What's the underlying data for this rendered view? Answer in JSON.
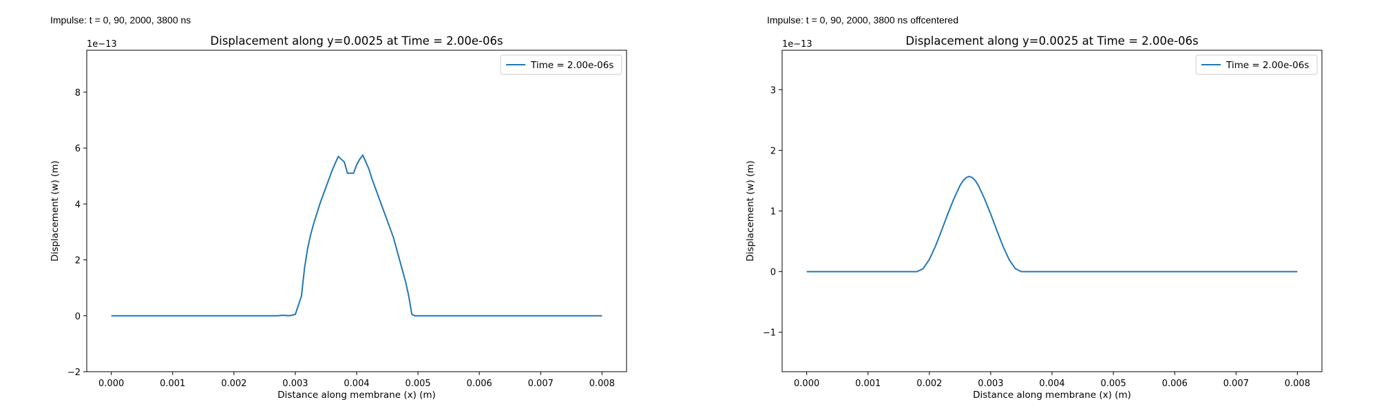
{
  "annotations": [
    "Impulse: t = 0, 90, 2000, 3800 ns",
    "Impulse: t = 0, 90, 2000, 3800 ns offcentered"
  ],
  "chart_data": [
    {
      "type": "line",
      "title": "Displacement along y=0.0025 at Time = 2.00e-06s",
      "xlabel": "Distance along membrane (x) (m)",
      "ylabel": "Displacement (w) (m)",
      "offset_label": "1e−13",
      "xlim": [
        -0.0004,
        0.0084
      ],
      "ylim": [
        -2,
        9.5
      ],
      "y_scale": 1e-13,
      "xticks": [
        0,
        0.001,
        0.002,
        0.003,
        0.004,
        0.005,
        0.006,
        0.007,
        0.008
      ],
      "xtick_labels": [
        "0.000",
        "0.001",
        "0.002",
        "0.003",
        "0.004",
        "0.005",
        "0.006",
        "0.007",
        "0.008"
      ],
      "yticks": [
        -2,
        0,
        2,
        4,
        6,
        8
      ],
      "ytick_labels": [
        "−2",
        "0",
        "2",
        "4",
        "6",
        "8"
      ],
      "grid": false,
      "legend": "upper right",
      "series": [
        {
          "name": "Time = 2.00e-06s",
          "color": "#1f77b4",
          "x": [
            0,
            0.0005,
            0.001,
            0.0015,
            0.002,
            0.0025,
            0.0027,
            0.0028,
            0.0029,
            0.003,
            0.0031,
            0.00315,
            0.0032,
            0.00325,
            0.0033,
            0.0034,
            0.0035,
            0.0036,
            0.0037,
            0.0038,
            0.00385,
            0.0039,
            0.00395,
            0.004,
            0.00405,
            0.0041,
            0.00415,
            0.0042,
            0.00425,
            0.0043,
            0.0044,
            0.0045,
            0.0046,
            0.0047,
            0.0048,
            0.00485,
            0.0049,
            0.00495,
            0.005,
            0.0051,
            0.0052,
            0.0055,
            0.006,
            0.007,
            0.008
          ],
          "y": [
            0,
            0,
            0,
            0,
            0,
            0,
            0,
            0.02,
            0,
            0.05,
            0.7,
            1.7,
            2.4,
            2.9,
            3.3,
            4.0,
            4.6,
            5.2,
            5.7,
            5.5,
            5.1,
            5.1,
            5.1,
            5.4,
            5.6,
            5.75,
            5.5,
            5.25,
            4.9,
            4.6,
            4.0,
            3.4,
            2.8,
            2.0,
            1.2,
            0.7,
            0.05,
            0,
            0,
            0,
            0,
            0,
            0,
            0,
            0
          ]
        }
      ]
    },
    {
      "type": "line",
      "title": "Displacement along y=0.0025 at Time = 2.00e-06s",
      "xlabel": "Distance along membrane (x) (m)",
      "ylabel": "Displacement (w) (m)",
      "offset_label": "1e−13",
      "xlim": [
        -0.0004,
        0.0084
      ],
      "ylim": [
        -1.65,
        3.65
      ],
      "y_scale": 1e-13,
      "xticks": [
        0,
        0.001,
        0.002,
        0.003,
        0.004,
        0.005,
        0.006,
        0.007,
        0.008
      ],
      "xtick_labels": [
        "0.000",
        "0.001",
        "0.002",
        "0.003",
        "0.004",
        "0.005",
        "0.006",
        "0.007",
        "0.008"
      ],
      "yticks": [
        -1,
        0,
        1,
        2,
        3
      ],
      "ytick_labels": [
        "−1",
        "0",
        "1",
        "2",
        "3"
      ],
      "grid": false,
      "legend": "upper right",
      "series": [
        {
          "name": "Time = 2.00e-06s",
          "color": "#1f77b4",
          "x": [
            0,
            0.0005,
            0.001,
            0.0015,
            0.0018,
            0.0019,
            0.002,
            0.0021,
            0.0022,
            0.0023,
            0.0024,
            0.0025,
            0.00255,
            0.0026,
            0.00265,
            0.0027,
            0.00275,
            0.0028,
            0.0029,
            0.003,
            0.0031,
            0.0032,
            0.0033,
            0.0034,
            0.0035,
            0.004,
            0.005,
            0.006,
            0.007,
            0.008
          ],
          "y": [
            0,
            0,
            0,
            0,
            0,
            0.05,
            0.2,
            0.42,
            0.68,
            0.95,
            1.2,
            1.42,
            1.5,
            1.55,
            1.57,
            1.55,
            1.5,
            1.42,
            1.2,
            0.95,
            0.68,
            0.42,
            0.2,
            0.05,
            0,
            0,
            0,
            0,
            0,
            0
          ]
        }
      ]
    }
  ]
}
